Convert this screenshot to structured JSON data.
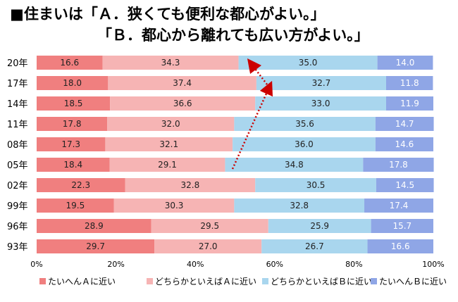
{
  "title": {
    "line1": "■住まいは「Ａ．狭くても便利な都心がよい。」",
    "line2": "「Ｂ．都心から離れても広い方がよい。」"
  },
  "chart_data": {
    "type": "bar",
    "orientation": "horizontal",
    "stacked": "percent",
    "categories": [
      "20年",
      "17年",
      "14年",
      "11年",
      "08年",
      "05年",
      "02年",
      "99年",
      "96年",
      "93年"
    ],
    "series": [
      {
        "name": "たいへんＡに近い",
        "color": "#f07f7f",
        "values": [
          16.6,
          18.0,
          18.5,
          17.8,
          17.3,
          18.4,
          22.3,
          19.5,
          28.9,
          29.7
        ]
      },
      {
        "name": "どちらかといえばＡに近い",
        "color": "#f6b4b4",
        "values": [
          34.3,
          37.4,
          36.6,
          32.0,
          32.1,
          29.1,
          32.8,
          30.3,
          29.5,
          27.0
        ]
      },
      {
        "name": "どちらかといえばＢに近い",
        "color": "#a9d6ee",
        "values": [
          35.0,
          32.7,
          33.0,
          35.6,
          36.0,
          34.8,
          30.5,
          32.8,
          25.9,
          26.7
        ]
      },
      {
        "name": "たいへんＢに近い",
        "color": "#8fa6e6",
        "values": [
          14.0,
          11.8,
          11.9,
          14.7,
          14.6,
          17.8,
          14.5,
          17.4,
          15.7,
          16.6
        ]
      }
    ],
    "xticks": [
      "0%",
      "20%",
      "40%",
      "60%",
      "80%",
      "100%"
    ],
    "xlim": [
      0,
      100
    ],
    "grid": false,
    "legend": "bottom",
    "annotation": "red dotted arrow from 05年 up to 17年 then 20年 (share of A)"
  }
}
